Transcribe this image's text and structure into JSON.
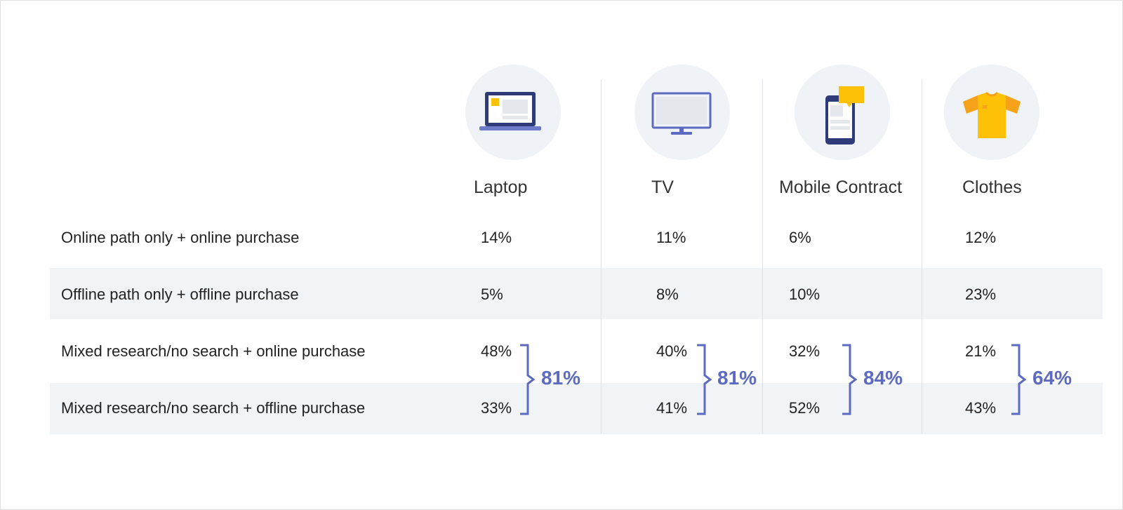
{
  "colors": {
    "accent": "#5c6bc0",
    "stripe": "#f1f4f7",
    "icon_bg": "#eff2f6",
    "icon_dark": "#2f3a78",
    "icon_yellow": "#ffc107"
  },
  "columns": [
    {
      "label": "Laptop",
      "icon": "laptop-icon"
    },
    {
      "label": "TV",
      "icon": "tv-icon"
    },
    {
      "label": "Mobile Contract",
      "icon": "mobile-phone-icon"
    },
    {
      "label": "Clothes",
      "icon": "tshirt-icon"
    }
  ],
  "chart_data": {
    "type": "table",
    "columns": [
      "Laptop",
      "TV",
      "Mobile Contract",
      "Clothes"
    ],
    "rows": [
      {
        "label": "Online path only + online purchase",
        "values": [
          "14%",
          "11%",
          "6%",
          "12%"
        ]
      },
      {
        "label": "Offline path only + offline purchase",
        "values": [
          "5%",
          "8%",
          "10%",
          "23%"
        ]
      },
      {
        "label": "Mixed research/no search + online purchase",
        "values": [
          "48%",
          "40%",
          "32%",
          "21%"
        ]
      },
      {
        "label": "Mixed research/no search + offline purchase",
        "values": [
          "33%",
          "41%",
          "52%",
          "43%"
        ]
      }
    ],
    "mixed_totals": [
      "81%",
      "81%",
      "84%",
      "64%"
    ]
  }
}
